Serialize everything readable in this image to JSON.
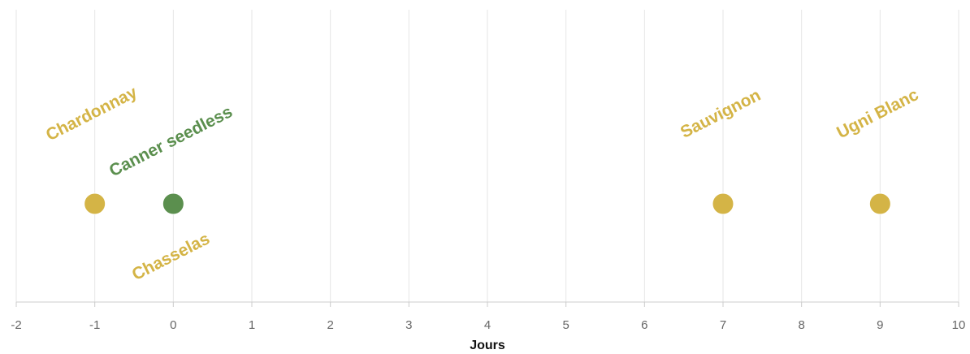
{
  "chart_data": {
    "type": "scatter",
    "title": "",
    "xlabel": "Jours",
    "ylabel": "",
    "xlim": [
      -2,
      10
    ],
    "xticks": [
      -2,
      -1,
      0,
      1,
      2,
      3,
      4,
      5,
      6,
      7,
      8,
      9,
      10
    ],
    "grid": true,
    "legend": "none",
    "points": [
      {
        "x": -1,
        "color": "#D4B446"
      },
      {
        "x": 0,
        "color": "#5B8F4E"
      },
      {
        "x": 7,
        "color": "#D4B446"
      },
      {
        "x": 9,
        "color": "#D4B446"
      }
    ],
    "labels": [
      {
        "text": "Chardonnay",
        "x": -1,
        "color": "#D4B446"
      },
      {
        "text": "Canner seedless",
        "x": 0,
        "color": "#5B8F4E"
      },
      {
        "text": "Chasselas",
        "x": 0,
        "color": "#D4B446"
      },
      {
        "text": "Sauvignon",
        "x": 7,
        "color": "#D4B446"
      },
      {
        "text": "Ugni Blanc",
        "x": 9,
        "color": "#D4B446"
      }
    ]
  }
}
